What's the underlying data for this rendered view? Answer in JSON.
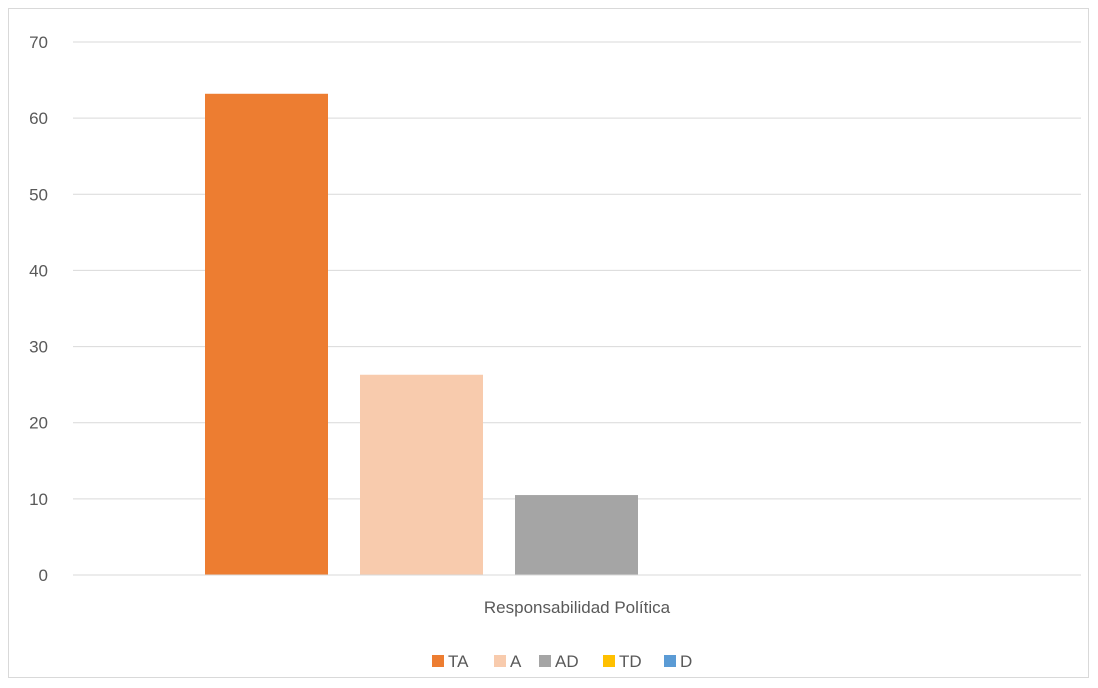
{
  "chart_data": {
    "type": "bar",
    "categories": [
      "Responsabilidad Política"
    ],
    "series": [
      {
        "name": "TA",
        "values": [
          63.2
        ],
        "color": "#ED7D31"
      },
      {
        "name": "A",
        "values": [
          26.3
        ],
        "color": "#F8CBAD"
      },
      {
        "name": "AD",
        "values": [
          10.5
        ],
        "color": "#A5A5A5"
      },
      {
        "name": "TD",
        "values": [
          0
        ],
        "color": "#FFC000"
      },
      {
        "name": "D",
        "values": [
          0
        ],
        "color": "#5B9BD5"
      }
    ],
    "yticks": [
      "0",
      "10",
      "20",
      "30",
      "40",
      "50",
      "60",
      "70"
    ],
    "ylim": [
      0,
      70
    ],
    "title": "",
    "xlabel": "",
    "ylabel": "",
    "grid": true,
    "legend_position": "bottom"
  }
}
